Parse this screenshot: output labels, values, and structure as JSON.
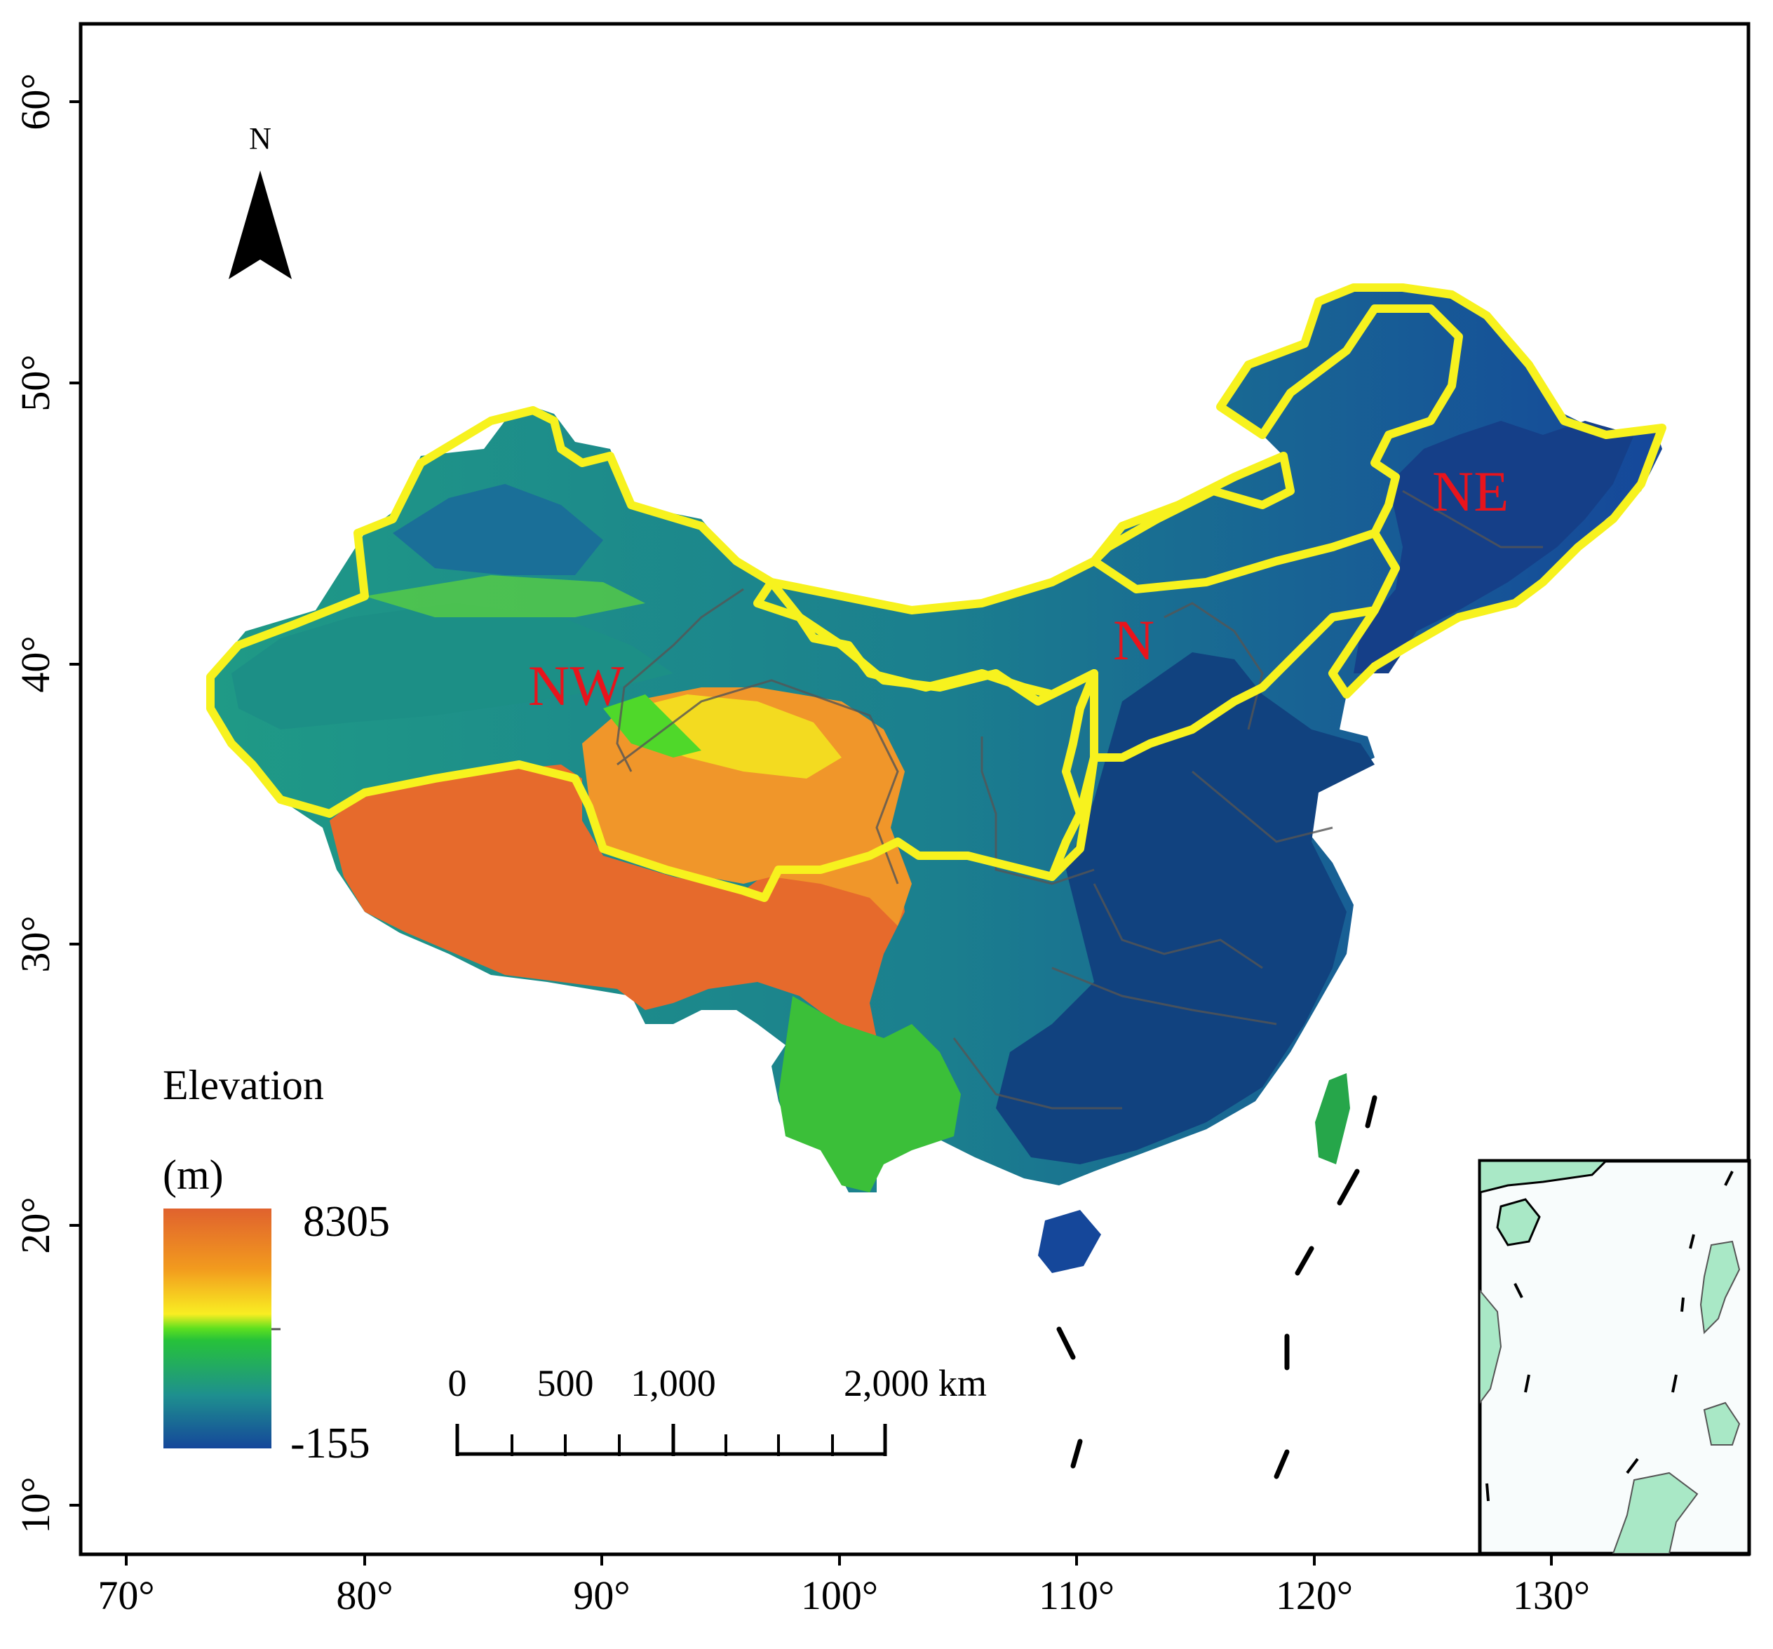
{
  "map": {
    "x_ticks": [
      {
        "label": "70°"
      },
      {
        "label": "80°"
      },
      {
        "label": "90°"
      },
      {
        "label": "100°"
      },
      {
        "label": "110°"
      },
      {
        "label": "120°"
      },
      {
        "label": "130°"
      }
    ],
    "y_ticks": [
      {
        "label": "10°"
      },
      {
        "label": "20°"
      },
      {
        "label": "30°"
      },
      {
        "label": "40°"
      },
      {
        "label": "50°"
      },
      {
        "label": "60°"
      }
    ],
    "north_arrow": {
      "label": "N"
    },
    "regions": [
      {
        "id": "NW",
        "label": "NW"
      },
      {
        "id": "N",
        "label": "N"
      },
      {
        "id": "NE",
        "label": "NE"
      }
    ],
    "legend": {
      "title": "Elevation",
      "unit": "(m)",
      "max_label": "8305",
      "min_label": "-155",
      "colors": [
        "#e0622e",
        "#f29a1e",
        "#f9ee22",
        "#2fd321",
        "#1e9a8f",
        "#15479a"
      ]
    },
    "scale_bar": {
      "labels": [
        "0",
        "500",
        "1,000",
        "2,000 km"
      ]
    },
    "colors": {
      "boundary_yellow": "#f7f21e",
      "region_label_red": "#e8141c",
      "land_inset": "#a9e8c6"
    }
  }
}
